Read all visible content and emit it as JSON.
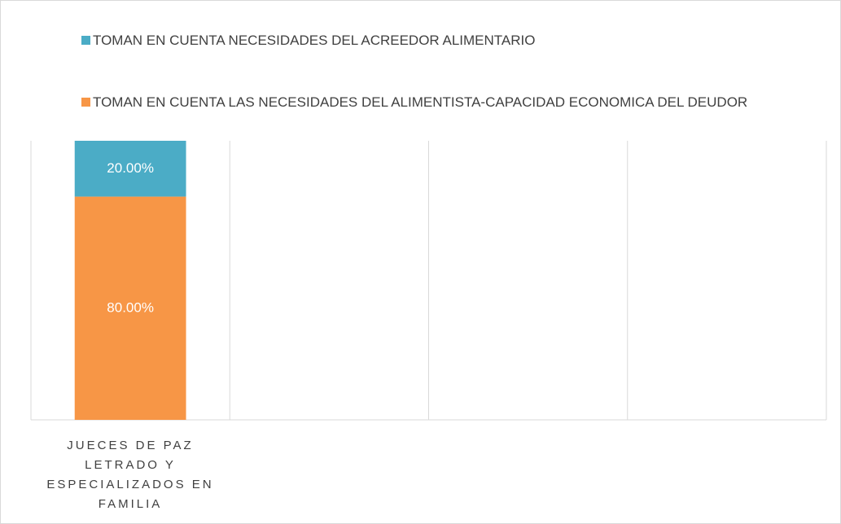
{
  "chart_data": {
    "type": "stacked_bar",
    "categories": [
      "JUECES DE PAZ LETRADO Y ESPECIALIZADOS EN FAMILIA",
      null,
      null,
      null
    ],
    "series": [
      {
        "name": "TOMAN EN CUENTA LAS NECESIDADES DEL ALIMENTISTA-CAPACIDAD ECONOMICA DEL DEUDOR",
        "color": "#f79646",
        "values": [
          80,
          null,
          null,
          null
        ],
        "value_labels": [
          "80.00%",
          null,
          null,
          null
        ]
      },
      {
        "name": "TOMAN EN CUENTA NECESIDADES DEL ACREEDOR ALIMENTARIO",
        "color": "#4bacc6",
        "values": [
          20,
          null,
          null,
          null
        ],
        "value_labels": [
          "20.00%",
          null,
          null,
          null
        ]
      }
    ],
    "ylim": [
      0,
      100
    ]
  }
}
